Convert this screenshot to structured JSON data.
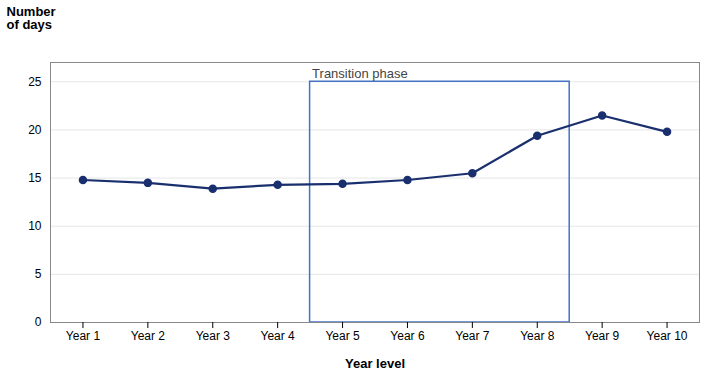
{
  "chart_data": {
    "type": "line",
    "categories": [
      "Year 1",
      "Year 2",
      "Year 3",
      "Year 4",
      "Year 5",
      "Year 6",
      "Year 7",
      "Year 8",
      "Year 9",
      "Year 10"
    ],
    "values": [
      14.8,
      14.5,
      13.9,
      14.3,
      14.4,
      14.8,
      15.5,
      19.4,
      21.5,
      19.8
    ],
    "color": "#1a2f6e",
    "marker": "circle",
    "x_label": "Year level",
    "y_label": "Number\nof days",
    "ylim": [
      0,
      27
    ],
    "yticks": [
      0,
      5,
      10,
      15,
      20,
      25
    ],
    "grid": true,
    "annotations": [
      {
        "text": "Transition phase",
        "x_from": "Year 5",
        "x_to": "Year 8",
        "y_from": 0,
        "y_to": 25,
        "color": "#4472c4"
      }
    ]
  }
}
